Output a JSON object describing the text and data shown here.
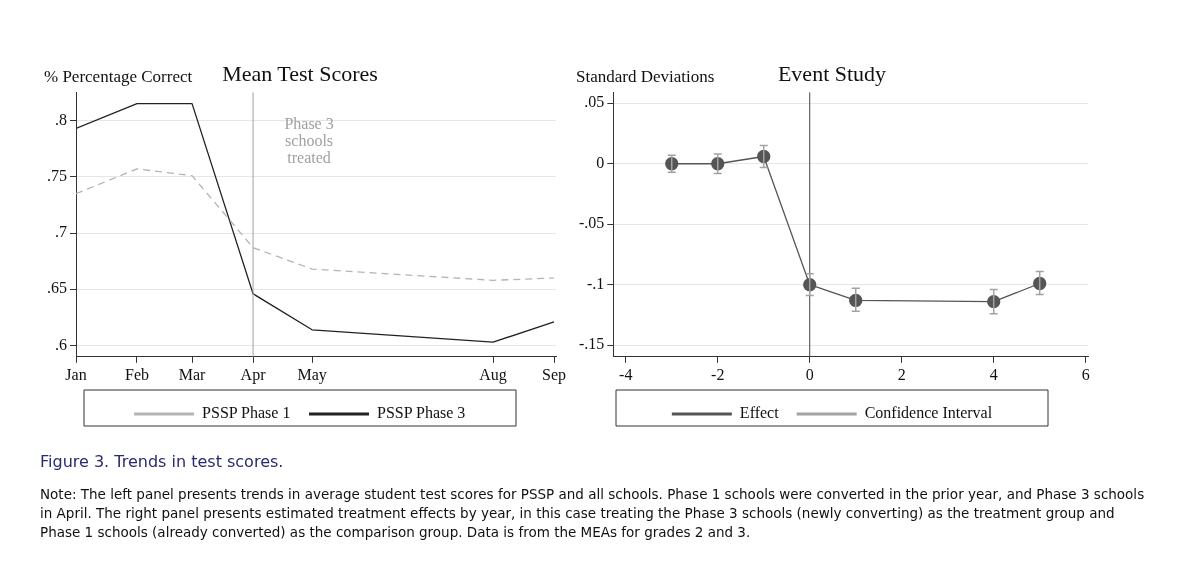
{
  "chart_data": [
    {
      "type": "line",
      "title": "Mean Test Scores",
      "ylabel": "% Percentage Correct",
      "x": [
        "--01-01",
        "--02-01",
        "--03-01",
        "--04-01",
        "--05-01",
        "--08-01",
        "--09-01"
      ],
      "series": [
        {
          "name": "PSSP Phase 1",
          "color": "#b4b4b4",
          "line_style": "dashed",
          "values": [
            0.735,
            0.757,
            0.751,
            0.687,
            0.668,
            0.658,
            0.66
          ]
        },
        {
          "name": "PSSP Phase 3",
          "color": "#222222",
          "line_style": "solid",
          "values": [
            0.793,
            0.815,
            0.815,
            0.646,
            0.614,
            0.603,
            0.621
          ]
        }
      ],
      "xlim": [
        "--01-01",
        "--09-02"
      ],
      "xticks": [
        {
          "value": "--01-01",
          "label": "Jan"
        },
        {
          "value": "--02-01",
          "label": "Feb"
        },
        {
          "value": "--03-01",
          "label": "Mar"
        },
        {
          "value": "--04-01",
          "label": "Apr"
        },
        {
          "value": "--05-01",
          "label": "May"
        },
        {
          "value": "--08-01",
          "label": "Aug"
        },
        {
          "value": "--09-01",
          "label": "Sep"
        }
      ],
      "ylim": [
        0.59,
        0.825
      ],
      "yticks": [
        {
          "value": 0.6,
          "label": ".6"
        },
        {
          "value": 0.65,
          "label": ".65"
        },
        {
          "value": 0.7,
          "label": ".7"
        },
        {
          "value": 0.75,
          "label": ".75"
        },
        {
          "value": 0.8,
          "label": ".8"
        }
      ],
      "ref_lines": [
        {
          "axis": "x",
          "value": "--04-01",
          "label": "Phase 3 schools treated",
          "color": "#a0a0a0"
        }
      ],
      "grid": "y",
      "legend": "bottom",
      "marker": "none",
      "annotations": [
        "Figure 3. Trends in test scores.",
        "Note: The left panel presents trends in average student test scores for PSSP and all schools. Phase 1 schools were converted in the prior year, and Phase 3 schools in April. The right panel presents estimated treatment effects by year, in this case treating the Phase 3 schools (newly converting) as the treatment group and Phase 1 schools (already converted) as the comparison group. Data is from the MEAs for grades 2 and 3."
      ]
    },
    {
      "type": "line",
      "title": "Event Study",
      "ylabel": "Standard Deviations",
      "x": [
        -3,
        -2,
        -1,
        0,
        1,
        4,
        5
      ],
      "series": [
        {
          "name": "Effect",
          "color": "#555555",
          "marker": "circle",
          "values": [
            0,
            0,
            0.006,
            -0.1,
            -0.113,
            -0.114,
            -0.099
          ],
          "errors": [
            [
              -0.007,
              0.007
            ],
            [
              -0.008,
              0.008
            ],
            [
              -0.003,
              0.015
            ],
            [
              -0.109,
              -0.091
            ],
            [
              -0.122,
              -0.103
            ],
            [
              -0.124,
              -0.104
            ],
            [
              -0.108,
              -0.089
            ]
          ]
        }
      ],
      "xlim": [
        -4.27,
        6.05
      ],
      "xticks": [
        -4,
        -2,
        0,
        2,
        4,
        6
      ],
      "ylim": [
        -0.1596,
        0.059
      ],
      "yticks": [
        {
          "value": -0.15,
          "label": "-.15"
        },
        {
          "value": -0.1,
          "label": "-.1"
        },
        {
          "value": -0.05,
          "label": "-.05"
        },
        0,
        {
          "value": 0.05,
          "label": ".05"
        }
      ],
      "ref_lines": [
        {
          "axis": "x",
          "value": 0,
          "color": "#444444"
        }
      ],
      "grid": "y",
      "legend": "bottom",
      "annotations": [
        "Confidence Interval"
      ]
    }
  ]
}
